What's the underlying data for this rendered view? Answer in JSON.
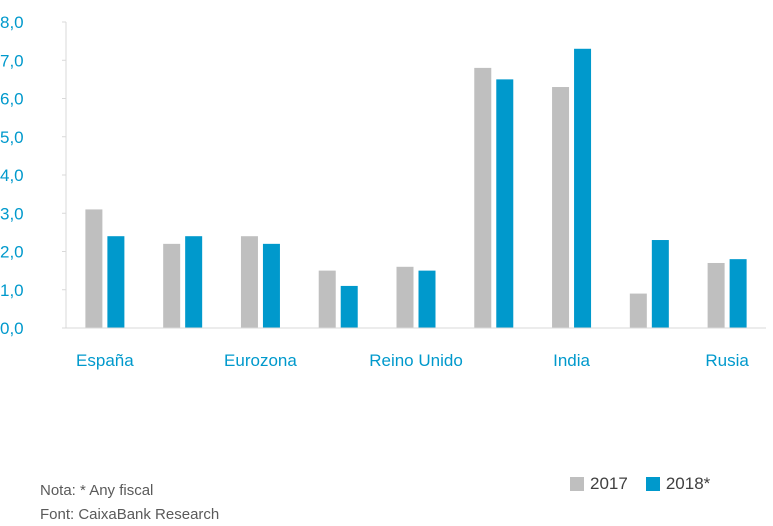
{
  "chart_data": {
    "type": "bar",
    "categories": [
      "España",
      "",
      "Eurozona",
      "",
      "Reino Unido",
      "",
      "India",
      "",
      "Rusia"
    ],
    "series": [
      {
        "name": "2017",
        "values": [
          3.1,
          2.2,
          2.4,
          1.5,
          1.6,
          6.8,
          6.3,
          0.9,
          1.7
        ],
        "color": "#bfbfbf"
      },
      {
        "name": "2018*",
        "values": [
          2.4,
          2.4,
          2.2,
          1.1,
          1.5,
          6.5,
          7.3,
          2.3,
          1.8
        ],
        "color": "#0099cc"
      }
    ],
    "ylim": [
      0,
      8
    ],
    "yticks": [
      "0,0",
      "1,0",
      "2,0",
      "3,0",
      "4,0",
      "5,0",
      "6,0",
      "7,0",
      "8,0"
    ],
    "grid": false,
    "legend_position": "bottom-right",
    "axis_color": "#0099cc"
  },
  "notes": {
    "note": "Nota: * Any fiscal",
    "source": "Font: CaixaBank Research"
  }
}
